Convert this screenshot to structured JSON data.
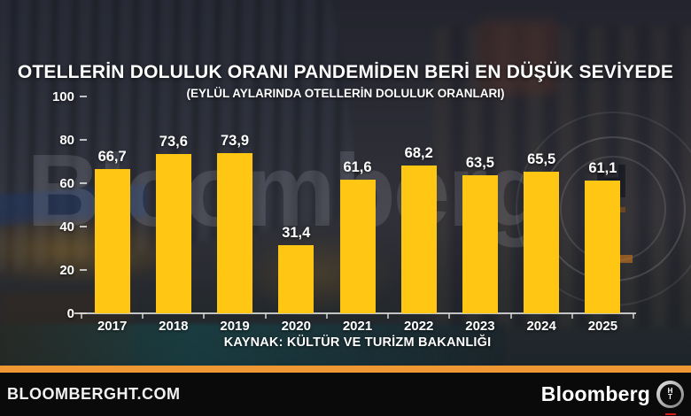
{
  "page": {
    "type": "tv-chart-graphic",
    "brand": "Bloomberg HT"
  },
  "header": {
    "title": "OTELLERİN DOLULUK ORANI PANDEMİDEN BERİ EN DÜŞÜK SEVİYEDE",
    "subtitle": "(EYLÜL AYLARINDA OTELLERİN DOLULUK ORANLARI)"
  },
  "chart_data": {
    "type": "bar",
    "title": "OTELLERİN DOLULUK ORANI PANDEMİDEN BERİ EN DÜŞÜK SEVİYEDE",
    "subtitle": "(EYLÜL AYLARINDA OTELLERİN DOLULUK ORANLARI)",
    "categories": [
      "2017",
      "2018",
      "2019",
      "2020",
      "2021",
      "2022",
      "2023",
      "2024",
      "2025"
    ],
    "values": [
      66.7,
      73.6,
      73.9,
      31.4,
      61.6,
      68.2,
      63.5,
      65.5,
      61.1
    ],
    "value_labels": [
      "66,7",
      "73,6",
      "73,9",
      "31,4",
      "61,6",
      "68,2",
      "63,5",
      "65,5",
      "61,1"
    ],
    "xlabel": "",
    "ylabel": "",
    "ylim": [
      0,
      100
    ],
    "yticks": [
      0,
      20,
      40,
      60,
      80,
      100
    ],
    "grid": false,
    "legend": false,
    "bar_color": "#FFC713",
    "axis_color": "#D9D9D9",
    "label_color": "#FFFFFF",
    "source": "KAYNAK: KÜLTÜR VE TURİZM BAKANLIĞI"
  },
  "watermark": {
    "text": "Bloomberg",
    "emblem_top": "H",
    "emblem_bottom": "T"
  },
  "footer": {
    "left_text": "BLOOMBERGHT.COM",
    "right_text": "Bloomberg",
    "logo_top": "H",
    "logo_bottom": "T",
    "stripe_color": "#EF9833",
    "bar_color": "#0A0A0A"
  }
}
